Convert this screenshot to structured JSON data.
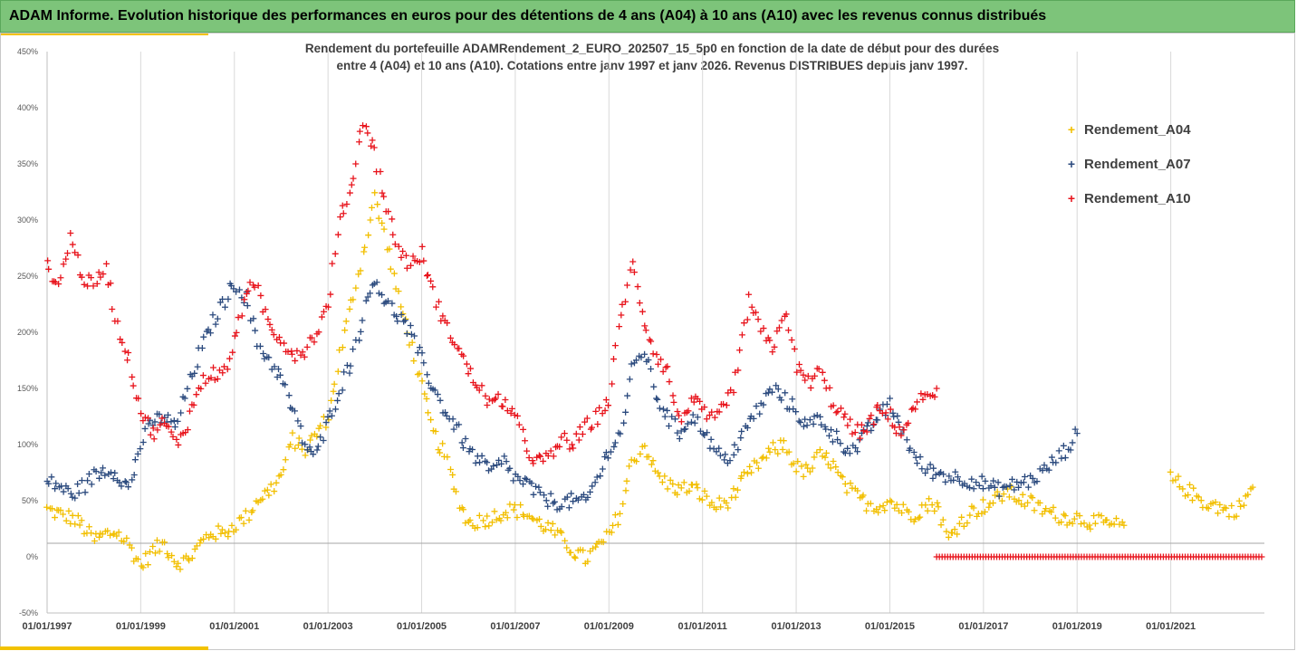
{
  "header": {
    "title": "ADAM Informe. Evolution historique des performances en euros pour des détentions de 4 ans (A04) à 10 ans (A10) avec les revenus connus distribués"
  },
  "colors": {
    "header_bg": "#7dc47a",
    "accent": "#f2c200",
    "a04": "#f2bf00",
    "a07": "#2b4a7e",
    "a10": "#e8141c"
  },
  "chart_data": {
    "type": "scatter",
    "title_line1": "Rendement du portefeuille ADAMRendement_2_EURO_202507_15_5p0  en fonction de la date de début pour des durées",
    "title_line2": "entre 4 (A04) et 10 ans (A10). Cotations entre janv 1997 et janv 2026. Revenus DISTRIBUES depuis janv 1997.",
    "marker": "+",
    "y_ticks": [
      "450%",
      "400%",
      "350%",
      "300%",
      "250%",
      "200%",
      "150%",
      "100%",
      "50%",
      "0%",
      "-50%"
    ],
    "y_tick_values": [
      450,
      400,
      350,
      300,
      250,
      200,
      150,
      100,
      50,
      0,
      -50
    ],
    "ylim": [
      -50,
      450
    ],
    "x_ticks": [
      "01/01/1997",
      "01/01/1999",
      "01/01/2001",
      "01/01/2003",
      "01/01/2005",
      "01/01/2007",
      "01/01/2009",
      "01/01/2011",
      "01/01/2013",
      "01/01/2015",
      "01/01/2017",
      "01/01/2019",
      "01/01/2021"
    ],
    "xlim": [
      "1997-01-01",
      "2023-01-01"
    ],
    "grid": "vertical",
    "legend_position": "top-right",
    "series": [
      {
        "name": "Rendement_A04",
        "points": [
          [
            "1997-01",
            42
          ],
          [
            "1997-04",
            38
          ],
          [
            "1997-07",
            35
          ],
          [
            "1997-10",
            28
          ],
          [
            "1998-01",
            15
          ],
          [
            "1998-04",
            20
          ],
          [
            "1998-07",
            22
          ],
          [
            "1998-10",
            10
          ],
          [
            "1999-01",
            -8
          ],
          [
            "1999-04",
            5
          ],
          [
            "1999-07",
            12
          ],
          [
            "1999-10",
            -5
          ],
          [
            "2000-01",
            -3
          ],
          [
            "2000-04",
            10
          ],
          [
            "2000-07",
            22
          ],
          [
            "2000-10",
            20
          ],
          [
            "2001-01",
            28
          ],
          [
            "2001-04",
            35
          ],
          [
            "2001-07",
            52
          ],
          [
            "2001-10",
            58
          ],
          [
            "2002-01",
            72
          ],
          [
            "2002-04",
            105
          ],
          [
            "2002-07",
            95
          ],
          [
            "2002-10",
            110
          ],
          [
            "2003-01",
            125
          ],
          [
            "2003-04",
            180
          ],
          [
            "2003-07",
            225
          ],
          [
            "2003-10",
            270
          ],
          [
            "2004-01",
            320
          ],
          [
            "2004-04",
            280
          ],
          [
            "2004-07",
            230
          ],
          [
            "2004-10",
            195
          ],
          [
            "2005-01",
            150
          ],
          [
            "2005-04",
            110
          ],
          [
            "2005-07",
            90
          ],
          [
            "2005-10",
            55
          ],
          [
            "2006-01",
            30
          ],
          [
            "2006-04",
            32
          ],
          [
            "2006-07",
            35
          ],
          [
            "2006-10",
            40
          ],
          [
            "2007-01",
            42
          ],
          [
            "2007-04",
            38
          ],
          [
            "2007-07",
            30
          ],
          [
            "2007-10",
            25
          ],
          [
            "2008-01",
            15
          ],
          [
            "2008-04",
            5
          ],
          [
            "2008-07",
            -2
          ],
          [
            "2008-10",
            8
          ],
          [
            "2009-01",
            18
          ],
          [
            "2009-04",
            40
          ],
          [
            "2009-07",
            85
          ],
          [
            "2009-10",
            100
          ],
          [
            "2010-01",
            75
          ],
          [
            "2010-04",
            65
          ],
          [
            "2010-07",
            60
          ],
          [
            "2010-10",
            62
          ],
          [
            "2011-01",
            55
          ],
          [
            "2011-04",
            45
          ],
          [
            "2011-07",
            48
          ],
          [
            "2011-10",
            60
          ],
          [
            "2012-01",
            75
          ],
          [
            "2012-04",
            85
          ],
          [
            "2012-07",
            95
          ],
          [
            "2012-10",
            100
          ],
          [
            "2013-01",
            80
          ],
          [
            "2013-04",
            75
          ],
          [
            "2013-07",
            90
          ],
          [
            "2013-10",
            85
          ],
          [
            "2014-01",
            65
          ],
          [
            "2014-04",
            55
          ],
          [
            "2014-07",
            48
          ],
          [
            "2014-10",
            45
          ],
          [
            "2015-01",
            50
          ],
          [
            "2015-04",
            42
          ],
          [
            "2015-07",
            38
          ],
          [
            "2015-10",
            45
          ],
          [
            "2016-01",
            48
          ],
          [
            "2016-04",
            15
          ],
          [
            "2016-07",
            30
          ],
          [
            "2016-10",
            40
          ],
          [
            "2017-01",
            45
          ],
          [
            "2017-04",
            50
          ],
          [
            "2017-07",
            58
          ],
          [
            "2017-10",
            52
          ],
          [
            "2018-01",
            48
          ],
          [
            "2018-04",
            42
          ],
          [
            "2018-07",
            38
          ],
          [
            "2018-10",
            35
          ],
          [
            "2019-01",
            35
          ],
          [
            "2019-04",
            32
          ],
          [
            "2019-07",
            30
          ],
          [
            "2019-10",
            28
          ],
          [
            "2020-01",
            28
          ],
          [
            "2021-01",
            70
          ],
          [
            "2021-04",
            62
          ],
          [
            "2021-07",
            55
          ],
          [
            "2021-10",
            48
          ],
          [
            "2022-01",
            45
          ],
          [
            "2022-04",
            40
          ],
          [
            "2022-07",
            45
          ],
          [
            "2022-10",
            62
          ]
        ]
      },
      {
        "name": "Rendement_A07",
        "points": [
          [
            "1997-01",
            66
          ],
          [
            "1997-04",
            64
          ],
          [
            "1997-07",
            55
          ],
          [
            "1997-10",
            62
          ],
          [
            "1998-01",
            72
          ],
          [
            "1998-04",
            78
          ],
          [
            "1998-07",
            75
          ],
          [
            "1998-10",
            60
          ],
          [
            "1999-01",
            100
          ],
          [
            "1999-04",
            120
          ],
          [
            "1999-07",
            125
          ],
          [
            "1999-10",
            115
          ],
          [
            "2000-01",
            150
          ],
          [
            "2000-04",
            180
          ],
          [
            "2000-07",
            205
          ],
          [
            "2000-10",
            225
          ],
          [
            "2001-01",
            245
          ],
          [
            "2001-04",
            230
          ],
          [
            "2001-07",
            190
          ],
          [
            "2001-10",
            175
          ],
          [
            "2002-01",
            160
          ],
          [
            "2002-04",
            130
          ],
          [
            "2002-07",
            100
          ],
          [
            "2002-10",
            90
          ],
          [
            "2003-01",
            120
          ],
          [
            "2003-04",
            150
          ],
          [
            "2003-07",
            175
          ],
          [
            "2003-10",
            215
          ],
          [
            "2004-01",
            250
          ],
          [
            "2004-04",
            225
          ],
          [
            "2004-07",
            215
          ],
          [
            "2004-10",
            200
          ],
          [
            "2005-01",
            175
          ],
          [
            "2005-04",
            150
          ],
          [
            "2005-07",
            130
          ],
          [
            "2005-10",
            115
          ],
          [
            "2006-01",
            95
          ],
          [
            "2006-04",
            85
          ],
          [
            "2006-07",
            75
          ],
          [
            "2006-10",
            85
          ],
          [
            "2007-01",
            70
          ],
          [
            "2007-04",
            65
          ],
          [
            "2007-07",
            55
          ],
          [
            "2007-10",
            50
          ],
          [
            "2008-01",
            48
          ],
          [
            "2008-04",
            50
          ],
          [
            "2008-07",
            48
          ],
          [
            "2008-10",
            70
          ],
          [
            "2009-01",
            95
          ],
          [
            "2009-04",
            110
          ],
          [
            "2009-07",
            165
          ],
          [
            "2009-10",
            185
          ],
          [
            "2010-01",
            145
          ],
          [
            "2010-04",
            125
          ],
          [
            "2010-07",
            110
          ],
          [
            "2010-10",
            125
          ],
          [
            "2011-01",
            115
          ],
          [
            "2011-04",
            95
          ],
          [
            "2011-07",
            85
          ],
          [
            "2011-10",
            100
          ],
          [
            "2012-01",
            120
          ],
          [
            "2012-04",
            135
          ],
          [
            "2012-07",
            150
          ],
          [
            "2012-10",
            140
          ],
          [
            "2013-01",
            130
          ],
          [
            "2013-04",
            115
          ],
          [
            "2013-07",
            125
          ],
          [
            "2013-10",
            110
          ],
          [
            "2014-01",
            100
          ],
          [
            "2014-04",
            95
          ],
          [
            "2014-07",
            110
          ],
          [
            "2014-10",
            125
          ],
          [
            "2015-01",
            135
          ],
          [
            "2015-04",
            115
          ],
          [
            "2015-07",
            90
          ],
          [
            "2015-10",
            78
          ],
          [
            "2016-01",
            75
          ],
          [
            "2016-04",
            72
          ],
          [
            "2016-07",
            70
          ],
          [
            "2016-10",
            68
          ],
          [
            "2017-01",
            65
          ],
          [
            "2017-04",
            60
          ],
          [
            "2017-07",
            62
          ],
          [
            "2017-10",
            65
          ],
          [
            "2018-01",
            68
          ],
          [
            "2018-04",
            75
          ],
          [
            "2018-07",
            85
          ],
          [
            "2018-10",
            95
          ],
          [
            "2019-01",
            110
          ]
        ]
      },
      {
        "name": "Rendement_A10",
        "points": [
          [
            "1997-01",
            260
          ],
          [
            "1997-04",
            240
          ],
          [
            "1997-07",
            285
          ],
          [
            "1997-10",
            250
          ],
          [
            "1998-01",
            240
          ],
          [
            "1998-04",
            260
          ],
          [
            "1998-07",
            205
          ],
          [
            "1998-10",
            175
          ],
          [
            "1999-01",
            130
          ],
          [
            "1999-04",
            110
          ],
          [
            "1999-07",
            120
          ],
          [
            "1999-10",
            100
          ],
          [
            "2000-01",
            120
          ],
          [
            "2000-04",
            150
          ],
          [
            "2000-07",
            165
          ],
          [
            "2000-10",
            160
          ],
          [
            "2001-01",
            190
          ],
          [
            "2001-04",
            240
          ],
          [
            "2001-07",
            235
          ],
          [
            "2001-10",
            205
          ],
          [
            "2002-01",
            195
          ],
          [
            "2002-04",
            180
          ],
          [
            "2002-07",
            185
          ],
          [
            "2002-10",
            200
          ],
          [
            "2003-01",
            225
          ],
          [
            "2003-04",
            300
          ],
          [
            "2003-07",
            330
          ],
          [
            "2003-10",
            390
          ],
          [
            "2004-01",
            360
          ],
          [
            "2004-04",
            310
          ],
          [
            "2004-07",
            275
          ],
          [
            "2004-10",
            260
          ],
          [
            "2005-01",
            270
          ],
          [
            "2005-04",
            235
          ],
          [
            "2005-07",
            205
          ],
          [
            "2005-10",
            190
          ],
          [
            "2006-01",
            165
          ],
          [
            "2006-04",
            150
          ],
          [
            "2006-07",
            135
          ],
          [
            "2006-10",
            140
          ],
          [
            "2007-01",
            125
          ],
          [
            "2007-04",
            95
          ],
          [
            "2007-07",
            85
          ],
          [
            "2007-10",
            88
          ],
          [
            "2008-01",
            105
          ],
          [
            "2008-04",
            100
          ],
          [
            "2008-07",
            115
          ],
          [
            "2008-10",
            125
          ],
          [
            "2009-01",
            140
          ],
          [
            "2009-04",
            215
          ],
          [
            "2009-07",
            260
          ],
          [
            "2009-10",
            210
          ],
          [
            "2010-01",
            180
          ],
          [
            "2010-04",
            165
          ],
          [
            "2010-07",
            120
          ],
          [
            "2010-10",
            140
          ],
          [
            "2011-01",
            130
          ],
          [
            "2011-04",
            120
          ],
          [
            "2011-07",
            135
          ],
          [
            "2011-10",
            165
          ],
          [
            "2012-01",
            230
          ],
          [
            "2012-04",
            200
          ],
          [
            "2012-07",
            185
          ],
          [
            "2012-10",
            220
          ],
          [
            "2013-01",
            170
          ],
          [
            "2013-04",
            155
          ],
          [
            "2013-07",
            165
          ],
          [
            "2013-10",
            140
          ],
          [
            "2014-01",
            125
          ],
          [
            "2014-04",
            110
          ],
          [
            "2014-07",
            115
          ],
          [
            "2014-10",
            130
          ],
          [
            "2015-01",
            125
          ],
          [
            "2015-04",
            110
          ],
          [
            "2015-07",
            130
          ],
          [
            "2015-10",
            145
          ],
          [
            "2016-01",
            150
          ]
        ],
        "zero_segment": [
          "2016-01",
          "2023-01"
        ]
      }
    ]
  }
}
